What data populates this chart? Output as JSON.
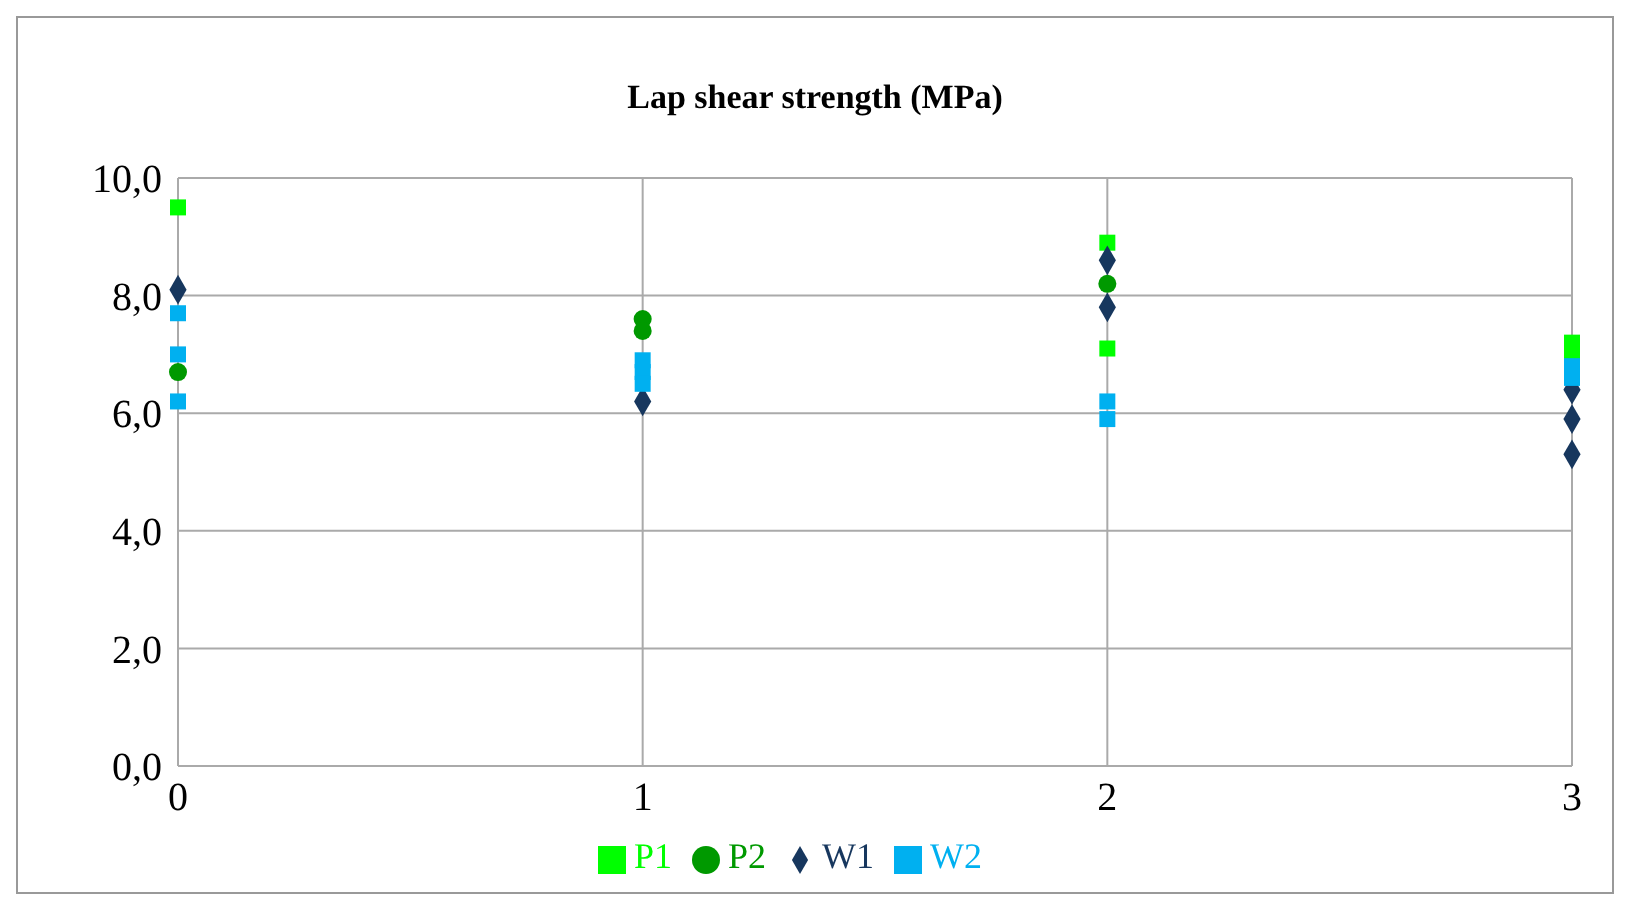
{
  "chart_data": {
    "type": "scatter",
    "title": "Lap shear strength (MPa)",
    "xlim": [
      0,
      3
    ],
    "xticks": [
      0,
      1,
      2,
      3
    ],
    "ylim": [
      0,
      10
    ],
    "yticks": [
      {
        "value": 0,
        "label": "0,0"
      },
      {
        "value": 2,
        "label": "2,0"
      },
      {
        "value": 4,
        "label": "4,0"
      },
      {
        "value": 6,
        "label": "6,0"
      },
      {
        "value": 8,
        "label": "8,0"
      },
      {
        "value": 10,
        "label": "10,0"
      }
    ],
    "grid": true,
    "legend": "bottom",
    "series": [
      {
        "name": "P1",
        "color": "#00ff00",
        "marker": "square",
        "x": [
          0,
          2,
          2,
          3,
          3
        ],
        "values": [
          9.5,
          8.9,
          7.1,
          7.2,
          7.0
        ]
      },
      {
        "name": "P2",
        "color": "#009900",
        "marker": "circle",
        "x": [
          0,
          1,
          1,
          2
        ],
        "values": [
          6.7,
          7.6,
          7.4,
          8.2
        ]
      },
      {
        "name": "W1",
        "color": "#17375e",
        "marker": "diamond",
        "x": [
          0,
          1,
          2,
          2,
          3,
          3,
          3
        ],
        "values": [
          8.1,
          6.2,
          8.6,
          7.8,
          6.4,
          5.9,
          5.3
        ]
      },
      {
        "name": "W2",
        "color": "#00b0f0",
        "marker": "square",
        "x": [
          0,
          0,
          0,
          1,
          1,
          1,
          2,
          2,
          3,
          3
        ],
        "values": [
          7.7,
          7.0,
          6.2,
          6.9,
          6.7,
          6.5,
          6.2,
          5.9,
          6.8,
          6.6
        ]
      }
    ]
  }
}
